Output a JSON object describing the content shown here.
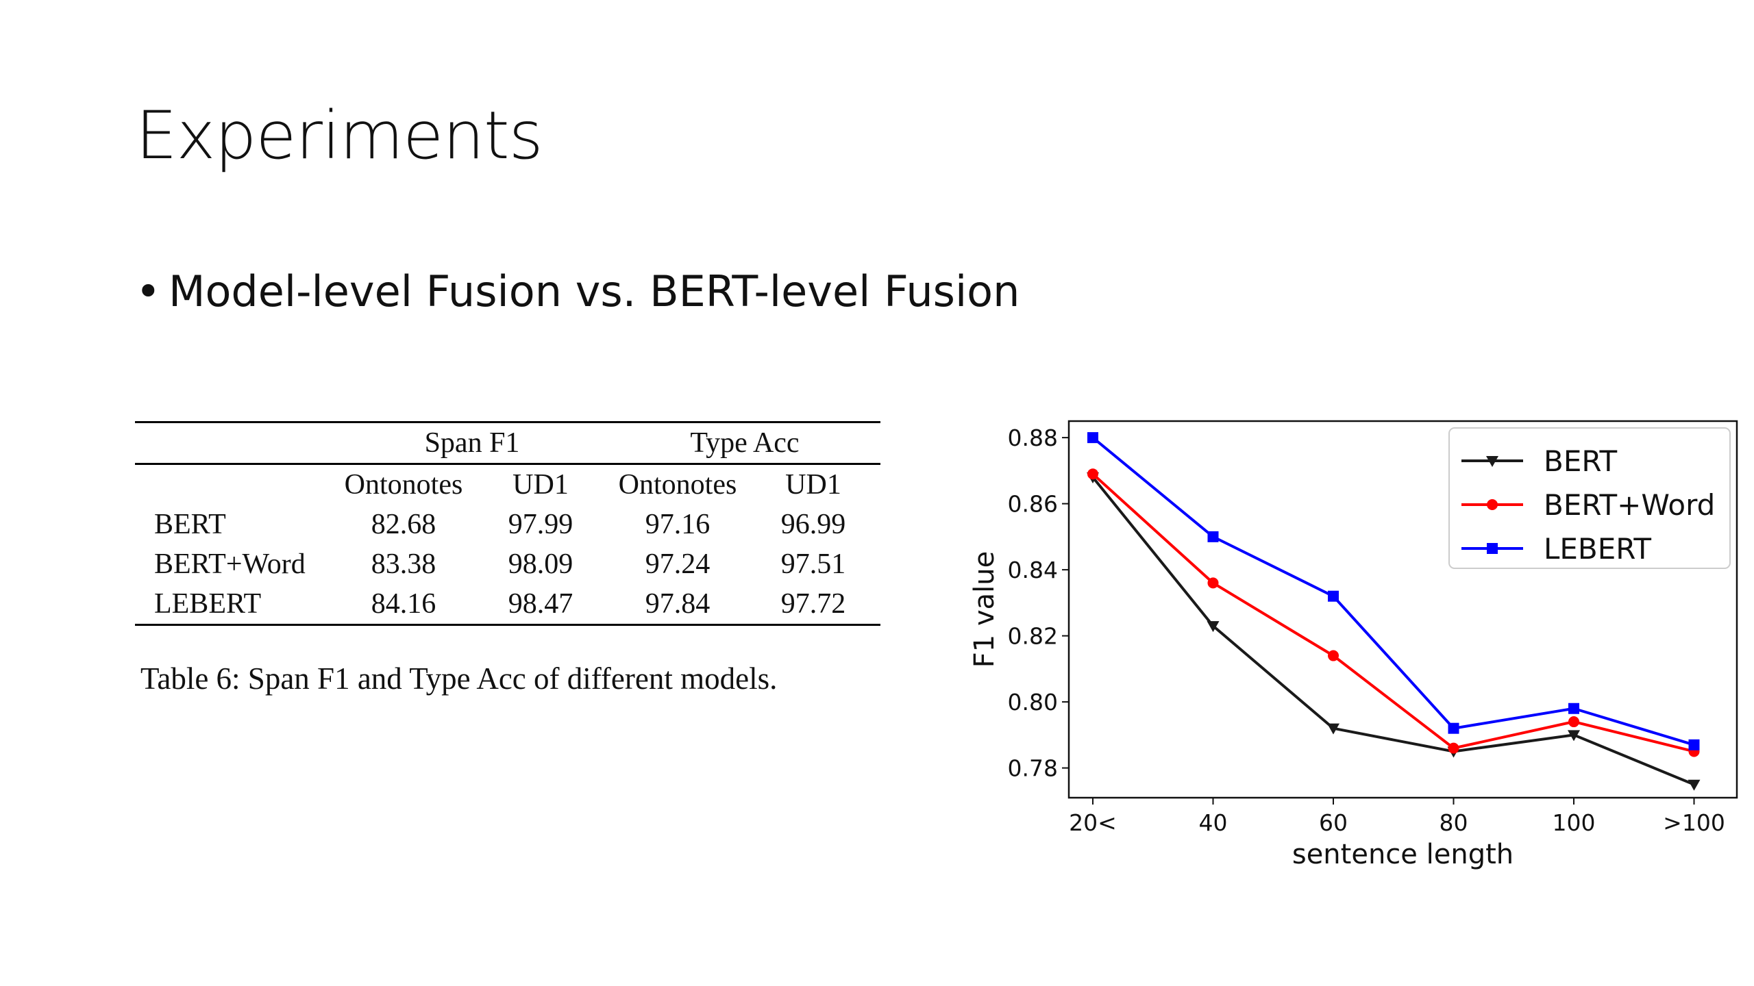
{
  "slide": {
    "title": "Experiments",
    "bullet": "Model-level Fusion vs. BERT-level Fusion"
  },
  "table": {
    "group_headers": [
      "Span F1",
      "Type Acc"
    ],
    "sub_headers": [
      "Ontonotes",
      "UD1",
      "Ontonotes",
      "UD1"
    ],
    "rows": [
      {
        "label": "BERT",
        "values": [
          "82.68",
          "97.99",
          "97.16",
          "96.99"
        ]
      },
      {
        "label": "BERT+Word",
        "values": [
          "83.38",
          "98.09",
          "97.24",
          "97.51"
        ]
      },
      {
        "label": "LEBERT",
        "values": [
          "84.16",
          "98.47",
          "97.84",
          "97.72"
        ]
      }
    ],
    "caption": "Table 6: Span F1 and Type Acc of different models."
  },
  "chart_data": {
    "type": "line",
    "title": "",
    "xlabel": "sentence length",
    "ylabel": "F1 value",
    "categories": [
      "20<",
      "40",
      "60",
      "80",
      "100",
      ">100"
    ],
    "ylim": [
      0.771,
      0.885
    ],
    "yticks": [
      "0.78",
      "0.80",
      "0.82",
      "0.84",
      "0.86",
      "0.88"
    ],
    "grid": false,
    "legend_position": "top-right",
    "series": [
      {
        "name": "BERT",
        "color": "#1a1a1a",
        "marker": "triangle-down",
        "values": [
          0.868,
          0.823,
          0.792,
          0.785,
          0.79,
          0.775
        ]
      },
      {
        "name": "BERT+Word",
        "color": "#ff0000",
        "marker": "circle",
        "values": [
          0.869,
          0.836,
          0.814,
          0.786,
          0.794,
          0.785
        ]
      },
      {
        "name": "LEBERT",
        "color": "#0000ff",
        "marker": "square",
        "values": [
          0.88,
          0.85,
          0.832,
          0.792,
          0.798,
          0.787
        ]
      }
    ]
  }
}
